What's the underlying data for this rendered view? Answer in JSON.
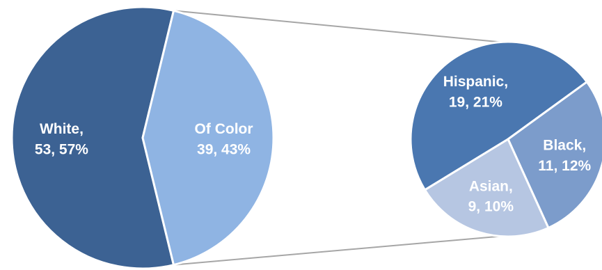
{
  "chart_data": {
    "type": "pie",
    "title": "",
    "main_pie": {
      "slices": [
        {
          "name": "White",
          "value": 53,
          "percent": 57,
          "color": "#3c6293",
          "label_lines": [
            "White,",
            "53, 57%"
          ]
        },
        {
          "name": "Of Color",
          "value": 39,
          "percent": 43,
          "color": "#8fb4e3",
          "label_lines": [
            "Of Color",
            "39, 43%"
          ]
        }
      ]
    },
    "sub_pie": {
      "source_slice": "Of Color",
      "slices": [
        {
          "name": "Hispanic",
          "value": 19,
          "percent": 21,
          "color": "#4a77b0",
          "label_lines": [
            "Hispanic,",
            "19, 21%"
          ]
        },
        {
          "name": "Black",
          "value": 11,
          "percent": 12,
          "color": "#7c9ccb",
          "label_lines": [
            "Black,",
            "11, 12%"
          ]
        },
        {
          "name": "Asian",
          "value": 9,
          "percent": 10,
          "color": "#b6c6e2",
          "label_lines": [
            "Asian,",
            "9, 10%"
          ]
        }
      ]
    },
    "connector_color": "#a6a6a6"
  }
}
